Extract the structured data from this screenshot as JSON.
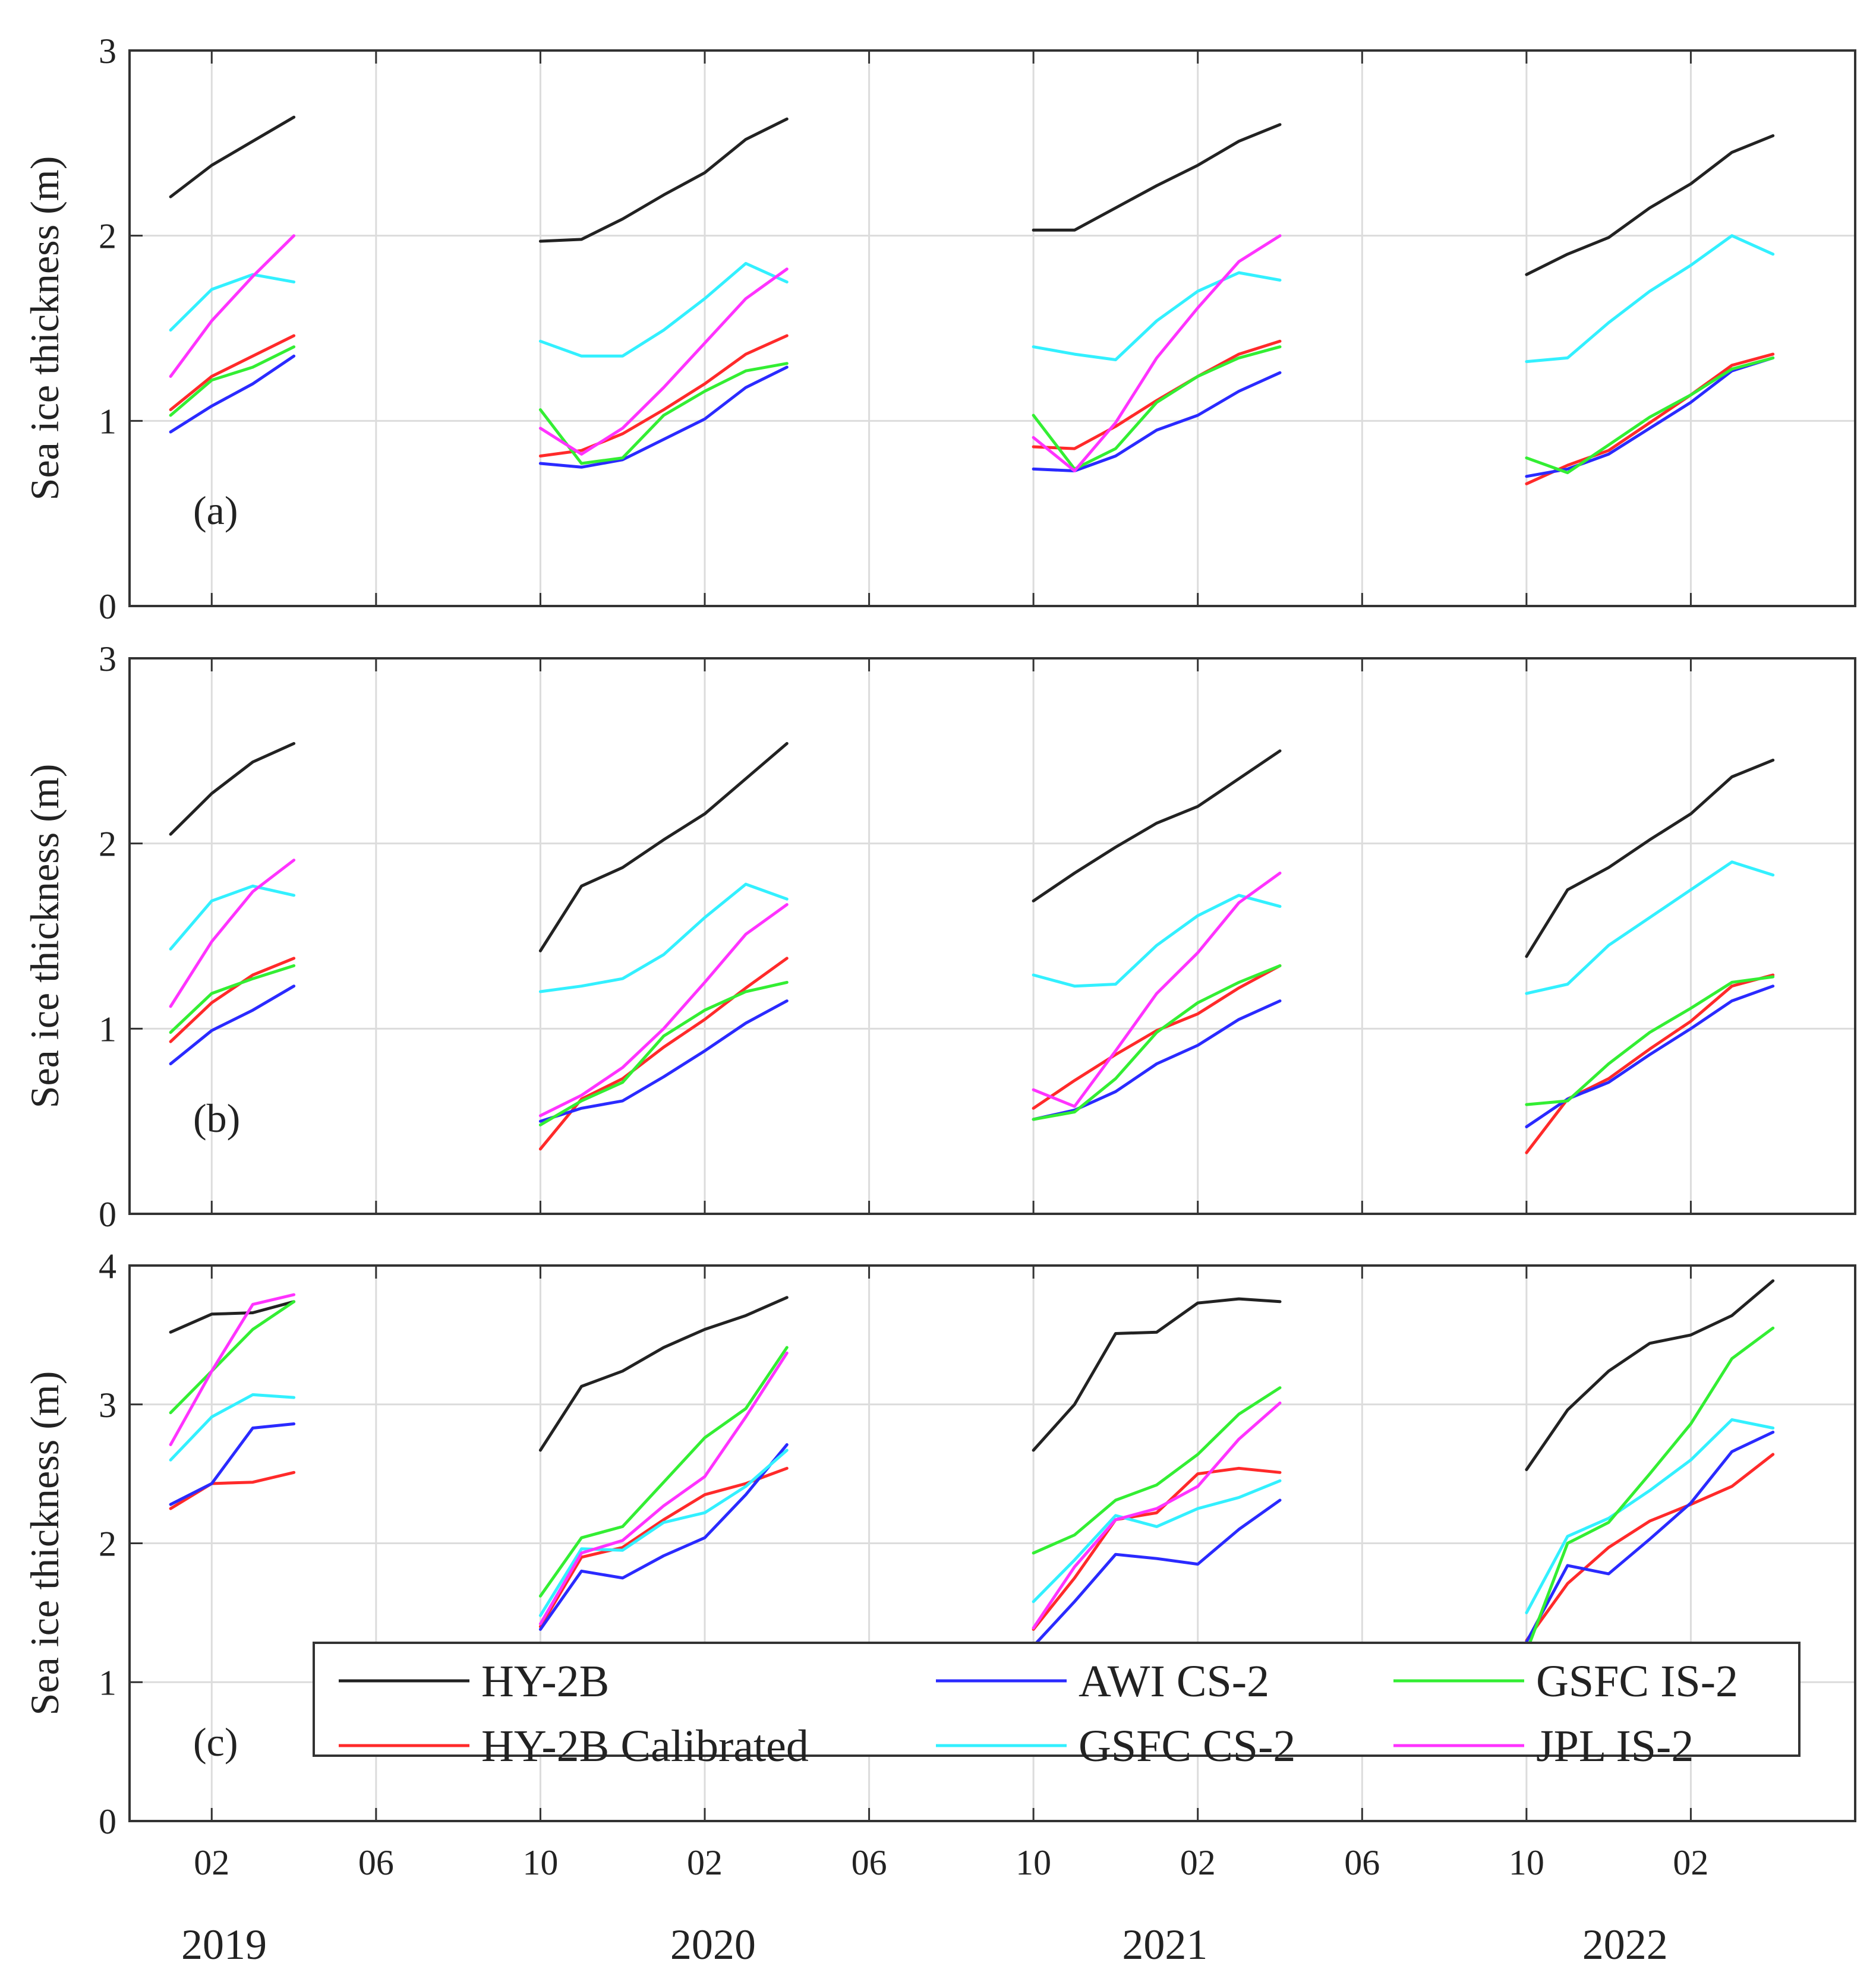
{
  "chart_data": {
    "type": "line",
    "figure_panels": [
      "a",
      "b",
      "c"
    ],
    "x_ticks": [
      {
        "month": 2,
        "label": "02"
      },
      {
        "month": 6,
        "label": "06"
      },
      {
        "month": 10,
        "label": "10"
      },
      {
        "month": 14,
        "label": "02"
      },
      {
        "month": 18,
        "label": "06"
      },
      {
        "month": 22,
        "label": "10"
      },
      {
        "month": 26,
        "label": "02"
      },
      {
        "month": 30,
        "label": "06"
      },
      {
        "month": 34,
        "label": "10"
      },
      {
        "month": 38,
        "label": "02"
      }
    ],
    "x_range": [
      0,
      42
    ],
    "years": [
      {
        "label": "2019",
        "center": 2.3
      },
      {
        "label": "2020",
        "center": 14.2
      },
      {
        "label": "2021",
        "center": 25.2
      },
      {
        "label": "2022",
        "center": 36.4
      }
    ],
    "series_styles": [
      {
        "name": "HY-2B",
        "color": "#222222"
      },
      {
        "name": "HY-2B Calibrated",
        "color": "#ff2a2a"
      },
      {
        "name": "AWI CS-2",
        "color": "#2a2aff"
      },
      {
        "name": "GSFC CS-2",
        "color": "#33f0ff"
      },
      {
        "name": "GSFC IS-2",
        "color": "#33ee33"
      },
      {
        "name": "JPL IS-2",
        "color": "#ff33ff"
      }
    ],
    "legend": {
      "position": "bottom-right of panel (c)",
      "columns": [
        [
          "HY-2B",
          "HY-2B Calibrated"
        ],
        [
          "AWI CS-2",
          "GSFC CS-2"
        ],
        [
          "GSFC IS-2",
          "JPL IS-2"
        ]
      ]
    },
    "segments_x": [
      [
        1,
        2,
        3,
        4
      ],
      [
        10,
        11,
        12,
        13,
        14,
        15,
        16
      ],
      [
        22,
        23,
        24,
        25,
        26,
        27,
        28
      ],
      [
        34,
        35,
        36,
        37,
        38,
        39,
        40
      ]
    ],
    "panels": [
      {
        "id": "a",
        "label": "(a)",
        "ylabel": "Sea ice thickness (m)",
        "ylim": [
          0,
          3
        ],
        "yticks": [
          0,
          1,
          2,
          3
        ],
        "series": [
          {
            "name": "HY-2B",
            "segments": [
              [
                2.21,
                2.38,
                2.51,
                2.64
              ],
              [
                1.97,
                1.98,
                2.09,
                2.22,
                2.34,
                2.52,
                2.63
              ],
              [
                2.03,
                2.03,
                2.15,
                2.27,
                2.38,
                2.51,
                2.6
              ],
              [
                1.79,
                1.9,
                1.99,
                2.15,
                2.28,
                2.45,
                2.54
              ]
            ]
          },
          {
            "name": "HY-2B Calibrated",
            "segments": [
              [
                1.06,
                1.24,
                1.35,
                1.46
              ],
              [
                0.81,
                0.84,
                0.93,
                1.06,
                1.2,
                1.36,
                1.46
              ],
              [
                0.86,
                0.85,
                0.97,
                1.11,
                1.24,
                1.36,
                1.43
              ],
              [
                0.66,
                0.76,
                0.84,
                0.99,
                1.14,
                1.3,
                1.36
              ]
            ]
          },
          {
            "name": "AWI CS-2",
            "segments": [
              [
                0.94,
                1.08,
                1.2,
                1.35
              ],
              [
                0.77,
                0.75,
                0.79,
                0.9,
                1.01,
                1.18,
                1.29
              ],
              [
                0.74,
                0.73,
                0.81,
                0.95,
                1.03,
                1.16,
                1.26
              ],
              [
                0.7,
                0.74,
                0.82,
                0.96,
                1.1,
                1.27,
                1.34
              ]
            ]
          },
          {
            "name": "GSFC CS-2",
            "segments": [
              [
                1.49,
                1.71,
                1.79,
                1.75
              ],
              [
                1.43,
                1.35,
                1.35,
                1.49,
                1.66,
                1.85,
                1.75
              ],
              [
                1.4,
                1.36,
                1.33,
                1.54,
                1.7,
                1.8,
                1.76
              ],
              [
                1.32,
                1.34,
                1.53,
                1.7,
                1.84,
                2.0,
                1.9
              ]
            ]
          },
          {
            "name": "GSFC IS-2",
            "segments": [
              [
                1.03,
                1.22,
                1.29,
                1.4
              ],
              [
                1.06,
                0.77,
                0.8,
                1.03,
                1.16,
                1.27,
                1.31
              ],
              [
                1.03,
                0.74,
                0.85,
                1.1,
                1.24,
                1.34,
                1.4
              ],
              [
                0.8,
                0.72,
                0.87,
                1.02,
                1.14,
                1.28,
                1.34
              ]
            ]
          },
          {
            "name": "JPL IS-2",
            "segments": [
              [
                1.24,
                1.54,
                1.78,
                2.0
              ],
              [
                0.96,
                0.82,
                0.96,
                1.18,
                1.42,
                1.66,
                1.82
              ],
              [
                0.91,
                0.73,
                0.99,
                1.34,
                1.61,
                1.86,
                2.0
              ],
              [
                null,
                null,
                null,
                null,
                null,
                null,
                null
              ]
            ]
          }
        ]
      },
      {
        "id": "b",
        "label": "(b)",
        "ylabel": "Sea ice thickness (m)",
        "ylim": [
          0,
          3
        ],
        "yticks": [
          0,
          1,
          2,
          3
        ],
        "series": [
          {
            "name": "HY-2B",
            "segments": [
              [
                2.05,
                2.27,
                2.44,
                2.54
              ],
              [
                1.42,
                1.77,
                1.87,
                2.02,
                2.16,
                2.35,
                2.54
              ],
              [
                1.69,
                1.84,
                1.98,
                2.11,
                2.2,
                2.35,
                2.5
              ],
              [
                1.39,
                1.75,
                1.87,
                2.02,
                2.16,
                2.36,
                2.45
              ]
            ]
          },
          {
            "name": "HY-2B Calibrated",
            "segments": [
              [
                0.93,
                1.14,
                1.29,
                1.38
              ],
              [
                0.35,
                0.62,
                0.73,
                0.9,
                1.05,
                1.22,
                1.38
              ],
              [
                0.57,
                0.72,
                0.86,
                0.99,
                1.08,
                1.22,
                1.34
              ],
              [
                0.33,
                0.62,
                0.73,
                0.89,
                1.04,
                1.23,
                1.29
              ]
            ]
          },
          {
            "name": "AWI CS-2",
            "segments": [
              [
                0.81,
                0.99,
                1.1,
                1.23
              ],
              [
                0.5,
                0.57,
                0.61,
                0.74,
                0.88,
                1.03,
                1.15
              ],
              [
                0.51,
                0.56,
                0.66,
                0.81,
                0.91,
                1.05,
                1.15
              ],
              [
                0.47,
                0.62,
                0.71,
                0.86,
                1.0,
                1.15,
                1.23
              ]
            ]
          },
          {
            "name": "GSFC CS-2",
            "segments": [
              [
                1.43,
                1.69,
                1.77,
                1.72
              ],
              [
                1.2,
                1.23,
                1.27,
                1.4,
                1.6,
                1.78,
                1.7
              ],
              [
                1.29,
                1.23,
                1.24,
                1.45,
                1.61,
                1.72,
                1.66
              ],
              [
                1.19,
                1.24,
                1.45,
                1.6,
                1.75,
                1.9,
                1.83
              ]
            ]
          },
          {
            "name": "GSFC IS-2",
            "segments": [
              [
                0.98,
                1.19,
                1.27,
                1.34
              ],
              [
                0.48,
                0.61,
                0.71,
                0.96,
                1.1,
                1.2,
                1.25
              ],
              [
                0.51,
                0.55,
                0.73,
                0.98,
                1.14,
                1.25,
                1.34
              ],
              [
                0.59,
                0.61,
                0.81,
                0.98,
                1.11,
                1.25,
                1.28
              ]
            ]
          },
          {
            "name": "JPL IS-2",
            "segments": [
              [
                1.12,
                1.47,
                1.74,
                1.91
              ],
              [
                0.53,
                0.64,
                0.79,
                1.0,
                1.25,
                1.51,
                1.67
              ],
              [
                0.67,
                0.58,
                0.88,
                1.19,
                1.41,
                1.68,
                1.84
              ],
              [
                null,
                null,
                null,
                null,
                null,
                null,
                null
              ]
            ]
          }
        ]
      },
      {
        "id": "c",
        "label": "(c)",
        "ylabel": "Sea ice thickness (m)",
        "ylim": [
          0,
          4
        ],
        "yticks": [
          0,
          1,
          2,
          3,
          4
        ],
        "series": [
          {
            "name": "HY-2B",
            "segments": [
              [
                3.52,
                3.65,
                3.66,
                3.74
              ],
              [
                2.67,
                3.13,
                3.24,
                3.41,
                3.54,
                3.64,
                3.77
              ],
              [
                2.67,
                3.0,
                3.51,
                3.52,
                3.73,
                3.76,
                3.74
              ],
              [
                2.53,
                2.96,
                3.24,
                3.44,
                3.5,
                3.64,
                3.89
              ]
            ]
          },
          {
            "name": "HY-2B Calibrated",
            "segments": [
              [
                2.25,
                2.43,
                2.44,
                2.51
              ],
              [
                1.4,
                1.9,
                1.97,
                2.17,
                2.35,
                2.43,
                2.54
              ],
              [
                1.38,
                1.75,
                2.17,
                2.22,
                2.5,
                2.54,
                2.51
              ],
              [
                1.3,
                1.71,
                1.97,
                2.16,
                2.28,
                2.41,
                2.64
              ]
            ]
          },
          {
            "name": "AWI CS-2",
            "segments": [
              [
                2.28,
                2.43,
                2.83,
                2.86
              ],
              [
                1.38,
                1.8,
                1.75,
                1.91,
                2.04,
                2.35,
                2.71
              ],
              [
                1.26,
                1.58,
                1.92,
                1.89,
                1.85,
                2.1,
                2.31
              ],
              [
                1.29,
                1.84,
                1.78,
                2.03,
                2.29,
                2.66,
                2.8
              ]
            ]
          },
          {
            "name": "GSFC CS-2",
            "segments": [
              [
                2.6,
                2.91,
                3.07,
                3.05
              ],
              [
                1.48,
                1.96,
                1.95,
                2.15,
                2.22,
                2.41,
                2.67
              ],
              [
                1.58,
                1.88,
                2.2,
                2.12,
                2.25,
                2.33,
                2.45
              ],
              [
                1.5,
                2.05,
                2.18,
                2.38,
                2.6,
                2.89,
                2.83
              ]
            ]
          },
          {
            "name": "GSFC IS-2",
            "segments": [
              [
                2.94,
                3.24,
                3.54,
                3.74
              ],
              [
                1.62,
                2.04,
                2.12,
                2.44,
                2.76,
                2.97,
                3.41
              ],
              [
                1.93,
                2.06,
                2.31,
                2.42,
                2.64,
                2.93,
                3.12
              ],
              [
                1.22,
                2.0,
                2.15,
                2.5,
                2.86,
                3.33,
                3.55
              ]
            ]
          },
          {
            "name": "JPL IS-2",
            "segments": [
              [
                2.71,
                3.24,
                3.72,
                3.79
              ],
              [
                1.42,
                1.93,
                2.02,
                2.27,
                2.48,
                2.91,
                3.37
              ],
              [
                1.39,
                1.83,
                2.17,
                2.25,
                2.41,
                2.75,
                3.01
              ],
              [
                null,
                null,
                null,
                null,
                null,
                null,
                null
              ]
            ]
          }
        ]
      }
    ]
  }
}
